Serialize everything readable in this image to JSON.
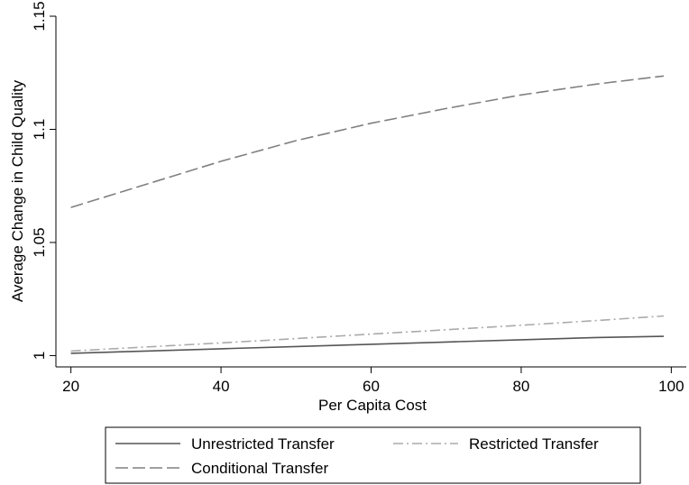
{
  "chart_data": {
    "type": "line",
    "title": "",
    "xlabel": "Per Capita Cost",
    "ylabel": "Average Change in Child Quality",
    "xlim": [
      18,
      102
    ],
    "ylim": [
      0.995,
      1.15
    ],
    "x_ticks": [
      20,
      40,
      60,
      80,
      100
    ],
    "x_tick_labels": [
      "20",
      "40",
      "60",
      "80",
      "100"
    ],
    "y_ticks": [
      1,
      1.05,
      1.1,
      1.15
    ],
    "y_tick_labels": [
      "1",
      "1.05",
      "1.1",
      "1.15"
    ],
    "grid": false,
    "legend_position": "bottom",
    "x": [
      20,
      30,
      40,
      50,
      60,
      70,
      80,
      90,
      99
    ],
    "series": [
      {
        "name": "Unrestricted Transfer",
        "style": "solid",
        "color": "#555555",
        "values": [
          1.001,
          1.002,
          1.003,
          1.004,
          1.005,
          1.006,
          1.007,
          1.008,
          1.0085
        ]
      },
      {
        "name": "Restricted Transfer",
        "style": "dash-dot",
        "color": "#aaaaaa",
        "values": [
          1.002,
          1.0038,
          1.0056,
          1.0075,
          1.0095,
          1.0114,
          1.0134,
          1.0155,
          1.0175
        ]
      },
      {
        "name": "Conditional Transfer",
        "style": "long-dash",
        "color": "#808080",
        "values": [
          1.0655,
          1.0757,
          1.0859,
          1.095,
          1.1027,
          1.1092,
          1.1152,
          1.12,
          1.1236
        ]
      }
    ]
  }
}
